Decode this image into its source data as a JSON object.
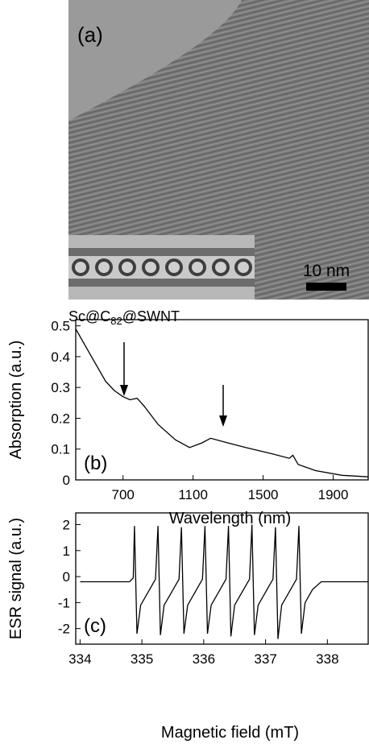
{
  "image_panel": {
    "label": "(a)",
    "scale_bar": "10 nm",
    "caption": [
      "Sc@C",
      "82",
      "@SWNT"
    ]
  },
  "chart_data": [
    {
      "type": "line",
      "panel_label": "(b)",
      "x_label": "Wavelength (nm)",
      "y_label": "Absorption (a.u.)",
      "color": "#000000",
      "x": [
        430,
        500,
        600,
        650,
        700,
        740,
        780,
        820,
        900,
        1000,
        1080,
        1150,
        1200,
        1300,
        1400,
        1550,
        1650,
        1670,
        1700,
        1800,
        1950,
        2100
      ],
      "values": [
        0.49,
        0.42,
        0.32,
        0.29,
        0.27,
        0.26,
        0.265,
        0.24,
        0.18,
        0.13,
        0.105,
        0.12,
        0.135,
        0.12,
        0.105,
        0.085,
        0.07,
        0.08,
        0.05,
        0.03,
        0.015,
        0.01
      ],
      "xlim": [
        430,
        2100
      ],
      "xticks": [
        700,
        1100,
        1500,
        1900
      ],
      "ylim": [
        0,
        0.52
      ],
      "yticks": [
        0,
        0.1,
        0.2,
        0.3,
        0.4,
        0.5
      ]
    },
    {
      "type": "line",
      "panel_label": "(c)",
      "x_label": "Magnetic field (mT)",
      "y_label": "ESR signal (a.u.)",
      "color": "#000000",
      "x": [
        334.0,
        334.4,
        334.8,
        334.86,
        334.88,
        334.92,
        334.98,
        335.1,
        335.22,
        335.26,
        335.3,
        335.36,
        335.48,
        335.6,
        335.64,
        335.68,
        335.74,
        335.86,
        335.98,
        336.02,
        336.06,
        336.12,
        336.24,
        336.36,
        336.4,
        336.44,
        336.5,
        336.62,
        336.74,
        336.78,
        336.82,
        336.88,
        337.0,
        337.12,
        337.16,
        337.2,
        337.26,
        337.38,
        337.5,
        337.54,
        337.58,
        337.64,
        337.76,
        337.9,
        338.1,
        338.4,
        338.66
      ],
      "values": [
        -0.2,
        -0.2,
        -0.2,
        -0.05,
        1.95,
        -2.2,
        -1.1,
        -0.6,
        -0.1,
        1.95,
        -2.25,
        -1.1,
        -0.6,
        -0.1,
        1.9,
        -2.2,
        -1.1,
        -0.6,
        -0.1,
        1.95,
        -2.2,
        -1.1,
        -0.6,
        -0.1,
        1.95,
        -2.3,
        -1.1,
        -0.6,
        -0.1,
        2.0,
        -2.25,
        -1.1,
        -0.6,
        -0.1,
        1.9,
        -2.4,
        -1.1,
        -0.6,
        -0.1,
        1.95,
        -2.2,
        -1.0,
        -0.5,
        -0.2,
        -0.2,
        -0.2,
        -0.2
      ],
      "xlim": [
        333.93,
        338.66
      ],
      "xticks": [
        334,
        335,
        336,
        337,
        338
      ],
      "ylim": [
        -2.6,
        2.45
      ],
      "yticks": [
        -2,
        -1,
        0,
        1,
        2
      ]
    }
  ]
}
